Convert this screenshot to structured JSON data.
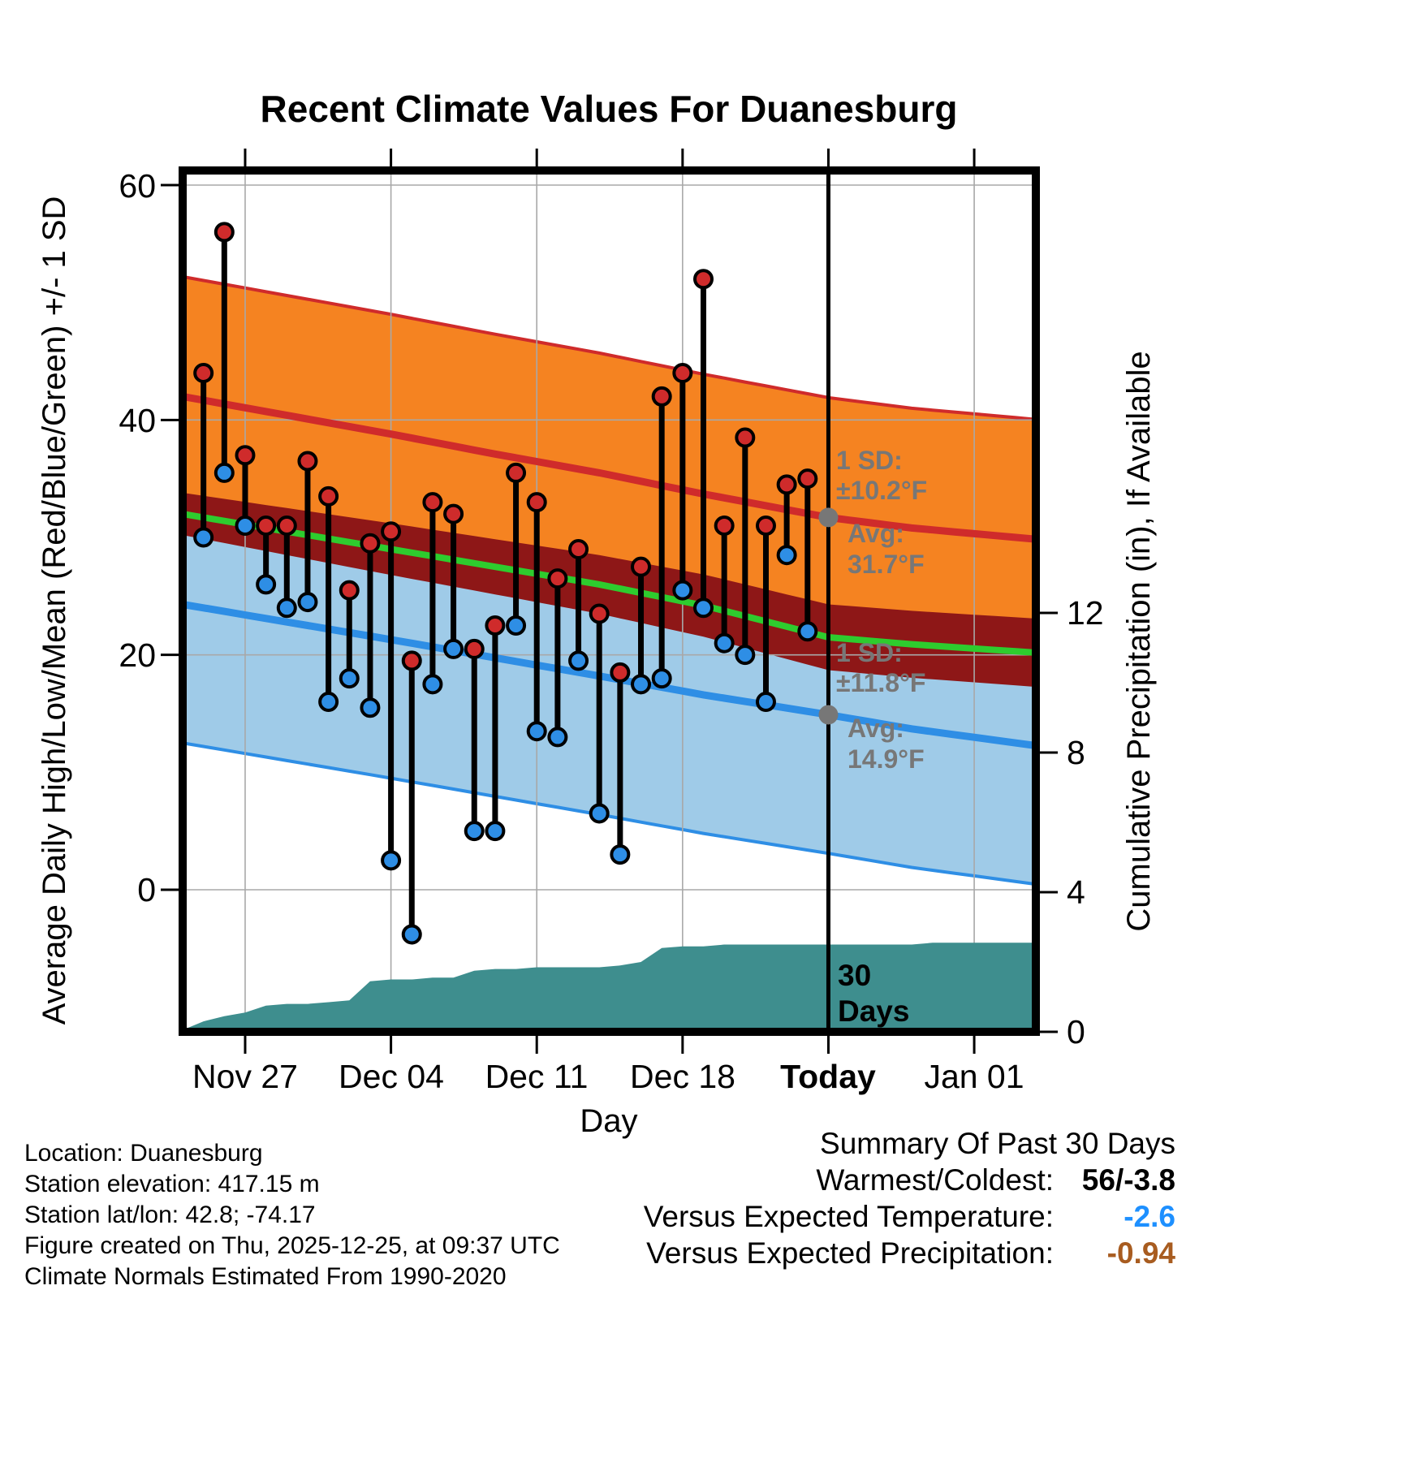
{
  "chart_data": {
    "type": "line",
    "title": "Recent Climate Values For Duanesburg",
    "xlabel": "Day",
    "ylabel_left": "Average Daily High/Low/Mean (Red/Blue/Green) +/- 1 SD",
    "ylabel_right": "Cumulative Precipitation (in), If Available",
    "y_left_ticks": [
      {
        "value": 0,
        "label": "0"
      },
      {
        "value": 20,
        "label": "20"
      },
      {
        "value": 40,
        "label": "40"
      },
      {
        "value": 60,
        "label": "60"
      }
    ],
    "y_right_ticks": [
      {
        "value": 0,
        "label": "0"
      },
      {
        "value": 4,
        "label": "4"
      },
      {
        "value": 8,
        "label": "8"
      },
      {
        "value": 12,
        "label": "12"
      }
    ],
    "x_ticks": [
      {
        "label": "Nov 27",
        "day": 3,
        "bold": false
      },
      {
        "label": "Dec 04",
        "day": 10,
        "bold": false
      },
      {
        "label": "Dec 11",
        "day": 17,
        "bold": false
      },
      {
        "label": "Dec 18",
        "day": 24,
        "bold": false
      },
      {
        "label": "Today",
        "day": 31,
        "bold": true
      },
      {
        "label": "Jan 01",
        "day": 38,
        "bold": false
      }
    ],
    "today_day": 31,
    "observations": [
      {
        "d": 1,
        "high": 44,
        "low": 30
      },
      {
        "d": 2,
        "high": 56,
        "low": 35.5
      },
      {
        "d": 3,
        "high": 37,
        "low": 31
      },
      {
        "d": 4,
        "high": 31,
        "low": 26
      },
      {
        "d": 5,
        "high": 31,
        "low": 24
      },
      {
        "d": 6,
        "high": 36.5,
        "low": 24.5
      },
      {
        "d": 7,
        "high": 33.5,
        "low": 16
      },
      {
        "d": 8,
        "high": 25.5,
        "low": 18
      },
      {
        "d": 9,
        "high": 29.5,
        "low": 15.5
      },
      {
        "d": 10,
        "high": 30.5,
        "low": 2.5
      },
      {
        "d": 11,
        "high": 19.5,
        "low": -3.8
      },
      {
        "d": 12,
        "high": 33,
        "low": 17.5
      },
      {
        "d": 13,
        "high": 32,
        "low": 20.5
      },
      {
        "d": 14,
        "high": 20.5,
        "low": 5
      },
      {
        "d": 15,
        "high": 22.5,
        "low": 5
      },
      {
        "d": 16,
        "high": 35.5,
        "low": 22.5
      },
      {
        "d": 17,
        "high": 33,
        "low": 13.5
      },
      {
        "d": 18,
        "high": 26.5,
        "low": 13
      },
      {
        "d": 19,
        "high": 29,
        "low": 19.5
      },
      {
        "d": 20,
        "high": 23.5,
        "low": 6.5
      },
      {
        "d": 21,
        "high": 18.5,
        "low": 3
      },
      {
        "d": 22,
        "high": 27.5,
        "low": 17.5
      },
      {
        "d": 23,
        "high": 42,
        "low": 18
      },
      {
        "d": 24,
        "high": 44,
        "low": 25.5
      },
      {
        "d": 25,
        "high": 52,
        "low": 24
      },
      {
        "d": 26,
        "high": 31,
        "low": 21
      },
      {
        "d": 27,
        "high": 38.5,
        "low": 20
      },
      {
        "d": 28,
        "high": 31,
        "low": 16
      },
      {
        "d": 29,
        "high": 34.5,
        "low": 28.5
      },
      {
        "d": 30,
        "high": 35,
        "low": 22
      }
    ],
    "normals": {
      "breakpoint_days": [
        0,
        5,
        10,
        15,
        20,
        25,
        31,
        35,
        40
      ],
      "high_avg": [
        42.0,
        40.4,
        38.8,
        37.1,
        35.5,
        33.7,
        31.7,
        30.8,
        30.0
      ],
      "low_avg": [
        24.3,
        22.8,
        21.3,
        19.75,
        18.2,
        16.6,
        14.9,
        13.7,
        12.5
      ],
      "mean_avg": [
        32.0,
        30.5,
        29.0,
        27.5,
        26.0,
        24.2,
        21.5,
        20.9,
        20.3
      ],
      "mean_band_halfwidth": [
        1.8,
        2.0,
        2.2,
        2.35,
        2.5,
        2.65,
        2.8,
        2.85,
        2.9
      ],
      "high_sd": 10.2,
      "low_sd": 11.8
    },
    "today_markers": {
      "high_avg": 31.7,
      "low_avg": 14.9
    },
    "precip_cumulative": {
      "start_day": 0,
      "values": [
        0.05,
        0.3,
        0.45,
        0.55,
        0.75,
        0.8,
        0.8,
        0.85,
        0.9,
        1.45,
        1.5,
        1.5,
        1.55,
        1.55,
        1.75,
        1.8,
        1.8,
        1.85,
        1.85,
        1.85,
        1.85,
        1.9,
        2.0,
        2.4,
        2.45,
        2.45,
        2.5,
        2.5,
        2.5,
        2.5,
        2.5,
        2.5,
        2.5,
        2.5,
        2.5,
        2.5,
        2.55,
        2.55,
        2.55,
        2.55,
        2.55
      ]
    },
    "annotations": {
      "high_sd_label": "1 SD:",
      "high_sd_value": "±10.2°F",
      "high_avg_label": "Avg:",
      "high_avg_value": "31.7°F",
      "low_sd_label": "1 SD:",
      "low_sd_value": "±11.8°F",
      "low_avg_label": "Avg:",
      "low_avg_value": "14.9°F",
      "period_top": "30",
      "period_bottom": "Days"
    },
    "colors": {
      "orange_band": "#F58321",
      "blue_band": "#9FCBE8",
      "dark_red_band": "#8E1717",
      "high_line": "#CF2B2B",
      "low_line": "#2E8EE5",
      "mean_line": "#2ECC2E",
      "precip_fill": "#3E8E8E",
      "stem": "#000000",
      "high_dot": "#CF2B2B",
      "low_dot": "#2E8EE5",
      "gray_marker": "#777777",
      "grid": "#A8A8A8",
      "today_line": "#000000"
    }
  },
  "footer_left": {
    "lines": [
      "Location: Duanesburg",
      "Station elevation: 417.15 m",
      "Station lat/lon: 42.8; -74.17",
      "Figure created on Thu, 2025-12-25, at 09:37 UTC",
      "Climate Normals Estimated From 1990-2020"
    ]
  },
  "summary": {
    "heading": "Summary Of Past 30 Days",
    "rows": [
      {
        "label": "Warmest/Coldest:",
        "value": "56/-3.8",
        "color": "#000000"
      },
      {
        "label": "Versus Expected Temperature:",
        "value": "-2.6",
        "color": "#1E90FF"
      },
      {
        "label": "Versus Expected Precipitation:",
        "value": "-0.94",
        "color": "#A85C20"
      }
    ]
  }
}
